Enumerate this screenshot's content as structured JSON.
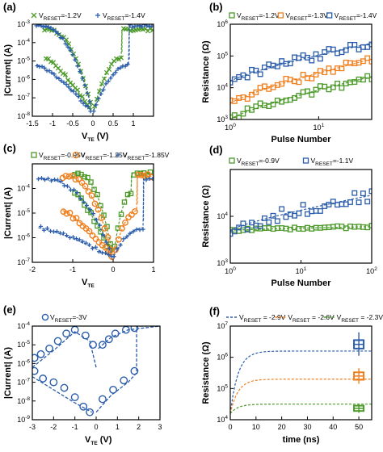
{
  "figure": {
    "colors": {
      "green": "#4c9a2a",
      "blue": "#2a5caa",
      "orange": "#f07f1e",
      "axis": "#000000"
    }
  },
  "chart_data": [
    {
      "id": "a",
      "panel_letter": "(a)",
      "type": "scatter",
      "xlabel": "V",
      "xlabel_sub": "TE",
      "xlabel_unit": " (V)",
      "ylabel": "|Current| (A)",
      "xlim": [
        -1.5,
        1.5
      ],
      "ylim_log10": [
        -8,
        -3
      ],
      "xticks": [
        {
          "v": -1.5,
          "t": "-1.5"
        },
        {
          "v": -1,
          "t": "-1"
        },
        {
          "v": -0.5,
          "t": "-0.5"
        },
        {
          "v": 0,
          "t": "0"
        },
        {
          "v": 0.5,
          "t": "0.5"
        },
        {
          "v": 1,
          "t": "1"
        }
      ],
      "yticks": [
        {
          "v": -8,
          "t": "10"
        },
        {
          "v": -7,
          "t": "10"
        },
        {
          "v": -6,
          "t": "10"
        },
        {
          "v": -5,
          "t": "10"
        },
        {
          "v": -4,
          "t": "10"
        },
        {
          "v": -3,
          "t": "10"
        }
      ],
      "ytick_exp": [
        "-8",
        "-7",
        "-6",
        "-5",
        "-4",
        "-3"
      ],
      "legend": [
        {
          "marker": "x",
          "color": "#4c9a2a",
          "pre": "V",
          "sub": "RESET",
          "post": "=-1.2V"
        },
        {
          "marker": "+",
          "color": "#2a5caa",
          "pre": "V",
          "sub": "RESET",
          "post": "=-1.4V"
        }
      ],
      "series": [
        {
          "color": "#4c9a2a",
          "marker": "x",
          "high_log": -3.3,
          "low_log": -4.8,
          "lim": -1.2,
          "set": 0.72
        },
        {
          "color": "#2a5caa",
          "marker": "+",
          "high_log": -3.1,
          "low_log": -5.2,
          "lim": -1.4,
          "set": 0.9
        }
      ]
    },
    {
      "id": "b",
      "panel_letter": "(b)",
      "type": "scatter",
      "xlabel": "Pulse Number",
      "ylabel": "Resistance (Ω)",
      "xscale": "log",
      "xlim_log10": [
        0,
        1.6
      ],
      "ylim_log10": [
        3,
        6
      ],
      "xticks": [
        {
          "v": 0,
          "t": "10",
          "e": "0"
        },
        {
          "v": 1,
          "t": "10",
          "e": "1"
        }
      ],
      "yticks": [
        {
          "v": 3,
          "t": "10",
          "e": "3"
        },
        {
          "v": 4,
          "t": "10",
          "e": "4"
        },
        {
          "v": 5,
          "t": "10",
          "e": "5"
        },
        {
          "v": 6,
          "t": "10",
          "e": "6"
        }
      ],
      "legend": [
        {
          "marker": "square",
          "color": "#4c9a2a",
          "pre": "V",
          "sub": "RESET",
          "post": "=-1.2V"
        },
        {
          "marker": "square",
          "color": "#f07f1e",
          "pre": "V",
          "sub": "RESET",
          "post": "=-1.3V"
        },
        {
          "marker": "square",
          "color": "#2a5caa",
          "pre": "V",
          "sub": "RESET",
          "post": "=-1.4V"
        }
      ],
      "series": [
        {
          "color": "#4c9a2a",
          "start": 3.0,
          "end": 4.35
        },
        {
          "color": "#f07f1e",
          "start": 3.5,
          "end": 4.9
        },
        {
          "color": "#2a5caa",
          "start": 4.2,
          "end": 5.4
        }
      ]
    },
    {
      "id": "c",
      "panel_letter": "(c)",
      "type": "scatter",
      "xlabel": "V",
      "xlabel_sub": "TE",
      "xlabel_unit": "",
      "ylabel": "|Current| (A)",
      "xlim": [
        -2,
        1
      ],
      "ylim_log10": [
        -7,
        -3
      ],
      "xticks": [
        {
          "v": -2,
          "t": "-2"
        },
        {
          "v": -1,
          "t": "-1"
        },
        {
          "v": 0,
          "t": "0"
        },
        {
          "v": 1,
          "t": "1"
        }
      ],
      "yticks": [
        {
          "v": -7,
          "t": "10",
          "e": "-7"
        },
        {
          "v": -6,
          "t": "10",
          "e": "-6"
        },
        {
          "v": -5,
          "t": "10",
          "e": "-5"
        },
        {
          "v": -4,
          "t": "10",
          "e": "-4"
        }
      ],
      "legend": [
        {
          "marker": "square",
          "color": "#4c9a2a",
          "pre": "V",
          "sub": "RESET",
          "post": "=-0.95V"
        },
        {
          "marker": "circle",
          "color": "#f07f1e",
          "pre": "V",
          "sub": "RESET",
          "post": "=-1.25V"
        },
        {
          "marker": "+",
          "color": "#2a5caa",
          "pre": "V",
          "sub": "RESET",
          "post": "=-1.85V"
        }
      ],
      "series": [
        {
          "color": "#4c9a2a",
          "marker": "square",
          "lim": -0.95,
          "high_log": -3.4,
          "low_log": -4.2,
          "set": 0.45
        },
        {
          "color": "#f07f1e",
          "marker": "circle",
          "lim": -1.25,
          "high_log": -3.5,
          "low_log": -4.9,
          "set": 0.6
        },
        {
          "color": "#2a5caa",
          "marker": "+",
          "lim": -1.85,
          "high_log": -3.6,
          "low_log": -5.6,
          "set": 0.75
        }
      ]
    },
    {
      "id": "d",
      "panel_letter": "(d)",
      "type": "scatter",
      "xlabel": "Pulse Number",
      "ylabel": "Resistance (Ω)",
      "xscale": "log",
      "xlim_log10": [
        0,
        2
      ],
      "ylim_log10": [
        3,
        5
      ],
      "xticks": [
        {
          "v": 0,
          "t": "10",
          "e": "0"
        },
        {
          "v": 1,
          "t": "10",
          "e": "1"
        },
        {
          "v": 2,
          "t": "10",
          "e": "2"
        }
      ],
      "yticks": [
        {
          "v": 3,
          "t": "10",
          "e": "3"
        },
        {
          "v": 4,
          "t": "10",
          "e": "4"
        }
      ],
      "legend": [
        {
          "marker": "square",
          "color": "#4c9a2a",
          "pre": "V",
          "sub": "RESET",
          "post": "=-0.9V"
        },
        {
          "marker": "square",
          "color": "#2a5caa",
          "pre": "V",
          "sub": "RESET",
          "post": "=-1.1V"
        }
      ],
      "series": [
        {
          "color": "#4c9a2a",
          "start": 3.7,
          "end": 3.78
        },
        {
          "color": "#2a5caa",
          "start": 3.7,
          "end": 4.45
        }
      ]
    },
    {
      "id": "e",
      "panel_letter": "(e)",
      "type": "scatter",
      "xlabel": "V",
      "xlabel_sub": "TE",
      "xlabel_unit": " (V)",
      "ylabel": "|Current| (A)",
      "xlim": [
        -3,
        3
      ],
      "ylim_log10": [
        -9,
        -4
      ],
      "xticks": [
        {
          "v": -3,
          "t": "-3"
        },
        {
          "v": -2,
          "t": "-2"
        },
        {
          "v": -1,
          "t": "-1"
        },
        {
          "v": 0,
          "t": "0"
        },
        {
          "v": 1,
          "t": "1"
        },
        {
          "v": 2,
          "t": "2"
        },
        {
          "v": 3,
          "t": "3"
        }
      ],
      "yticks": [
        {
          "v": -9,
          "t": "10",
          "e": "-9"
        },
        {
          "v": -8,
          "t": "10",
          "e": "-8"
        },
        {
          "v": -7,
          "t": "10",
          "e": "-7"
        },
        {
          "v": -6,
          "t": "10",
          "e": "-6"
        },
        {
          "v": -5,
          "t": "10",
          "e": "-5"
        },
        {
          "v": -4,
          "t": "10",
          "e": "-4"
        }
      ],
      "legend": [
        {
          "marker": "circle",
          "color": "#2a5caa",
          "pre": "V",
          "sub": "RESET",
          "post": "=-3V"
        }
      ],
      "points": [
        {
          "x": -2.9,
          "y": -5.7
        },
        {
          "x": -2.6,
          "y": -5.5
        },
        {
          "x": -2.2,
          "y": -5.2
        },
        {
          "x": -1.8,
          "y": -4.8
        },
        {
          "x": -1.4,
          "y": -4.4
        },
        {
          "x": -1.0,
          "y": -4.2
        },
        {
          "x": -0.5,
          "y": -4.5
        },
        {
          "x": -0.15,
          "y": -5.0
        },
        {
          "x": -2.9,
          "y": -6.4
        },
        {
          "x": -2.5,
          "y": -6.8
        },
        {
          "x": -2.0,
          "y": -7.0
        },
        {
          "x": -1.5,
          "y": -7.3
        },
        {
          "x": -1.0,
          "y": -7.8
        },
        {
          "x": -0.6,
          "y": -8.3
        },
        {
          "x": -0.3,
          "y": -8.6
        },
        {
          "x": 0.3,
          "y": -5.0
        },
        {
          "x": 0.6,
          "y": -4.7
        },
        {
          "x": 0.9,
          "y": -4.4
        },
        {
          "x": 1.4,
          "y": -4.2
        },
        {
          "x": 1.8,
          "y": -4.1
        },
        {
          "x": 0.3,
          "y": -7.9
        },
        {
          "x": 0.8,
          "y": -7.4
        },
        {
          "x": 1.3,
          "y": -6.9
        },
        {
          "x": 1.8,
          "y": -6.4
        }
      ],
      "curves": [
        [
          [
            -3,
            -6.2
          ],
          [
            -2,
            -5.3
          ],
          [
            -1,
            -4.3
          ],
          [
            -0.3,
            -4.8
          ],
          [
            0,
            -6.2
          ]
        ],
        [
          [
            -3,
            -6.7
          ],
          [
            -2,
            -7.4
          ],
          [
            -1,
            -8.1
          ],
          [
            -0.2,
            -8.6
          ]
        ],
        [
          [
            0.1,
            -5.2
          ],
          [
            0.7,
            -4.6
          ],
          [
            1.5,
            -4.2
          ],
          [
            3,
            -4.0
          ]
        ],
        [
          [
            0,
            -8.6
          ],
          [
            0.7,
            -7.7
          ],
          [
            1.5,
            -7.0
          ],
          [
            1.9,
            -6.5
          ],
          [
            1.9,
            -4.0
          ],
          [
            3,
            -4.0
          ]
        ]
      ]
    },
    {
      "id": "f",
      "panel_letter": "(f)",
      "type": "line",
      "xlabel": "time (ns)",
      "ylabel": "Resistance (Ω)",
      "xlim": [
        0,
        55
      ],
      "ylim_log10": [
        4,
        7
      ],
      "xticks": [
        {
          "v": 0,
          "t": "0"
        },
        {
          "v": 10,
          "t": "10"
        },
        {
          "v": 20,
          "t": "20"
        },
        {
          "v": 30,
          "t": "30"
        },
        {
          "v": 40,
          "t": "40"
        },
        {
          "v": 50,
          "t": "50"
        }
      ],
      "yticks": [
        {
          "v": 4,
          "t": "10",
          "e": "4"
        },
        {
          "v": 5,
          "t": "10",
          "e": "5"
        },
        {
          "v": 6,
          "t": "10",
          "e": "6"
        },
        {
          "v": 7,
          "t": "10",
          "e": "7"
        }
      ],
      "legend": [
        {
          "marker": "line",
          "color": "#2a5caa",
          "pre": "V",
          "sub": "RESET",
          "post": " = -2.9V"
        },
        {
          "marker": "line",
          "color": "#f07f1e",
          "pre": "V",
          "sub": "RESET",
          "post": " = -2.6V"
        },
        {
          "marker": "line",
          "color": "#4c9a2a",
          "pre": "V",
          "sub": "RESET",
          "post": " = -2.3V"
        }
      ],
      "series": [
        {
          "color": "#2a5caa",
          "plateau": 6.2,
          "box": [
            6.28,
            6.55
          ],
          "whisk": [
            6.05,
            6.8
          ]
        },
        {
          "color": "#f07f1e",
          "plateau": 5.3,
          "box": [
            5.28,
            5.52
          ],
          "whisk": [
            5.15,
            5.65
          ]
        },
        {
          "color": "#4c9a2a",
          "plateau": 4.5,
          "box": [
            4.28,
            4.45
          ],
          "whisk": [
            4.22,
            4.52
          ]
        }
      ]
    }
  ]
}
